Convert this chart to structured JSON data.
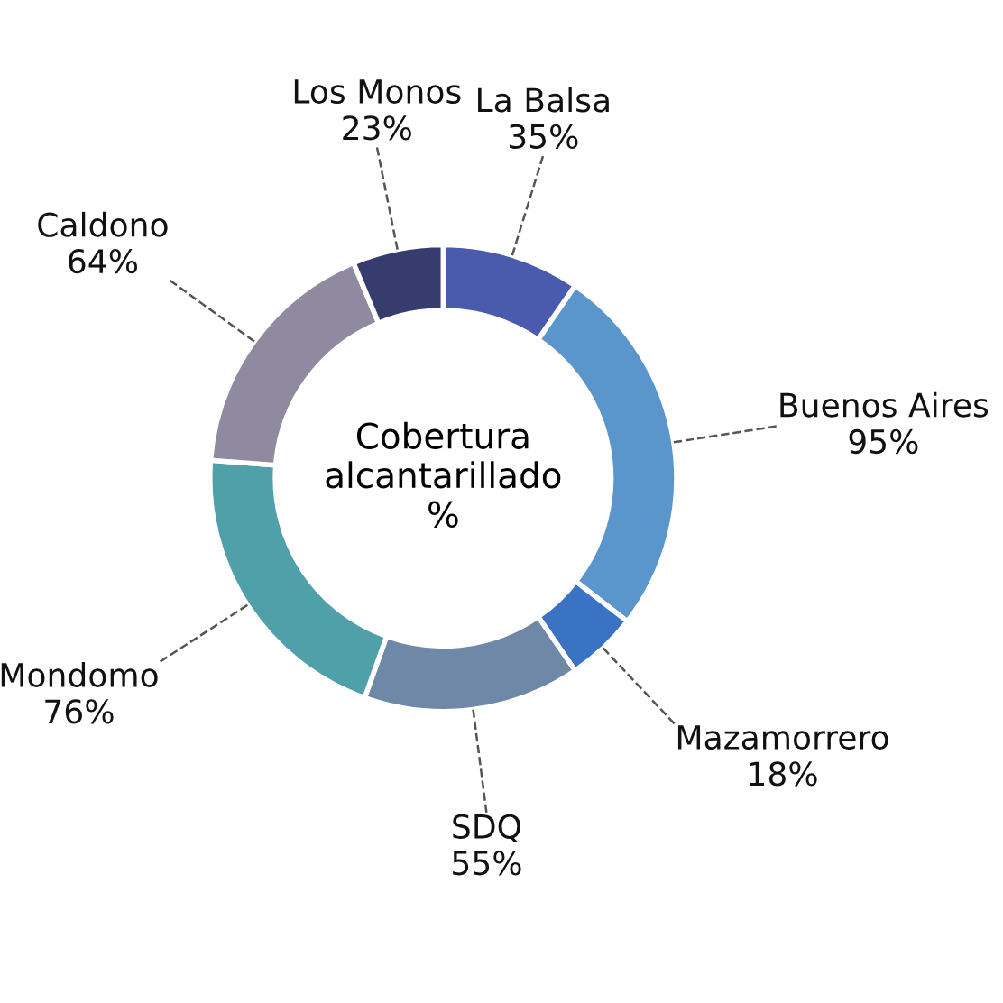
{
  "chart_data": {
    "type": "donut",
    "title": "Cobertura\nalcantarillado\n%",
    "categories": [
      "La Balsa",
      "Buenos Aires",
      "Mazamorrero",
      "SDQ",
      "Mondomo",
      "Caldono",
      "Los Monos"
    ],
    "values": [
      35,
      95,
      18,
      55,
      76,
      64,
      23
    ],
    "value_labels": [
      "35%",
      "95%",
      "18%",
      "55%",
      "76%",
      "64%",
      "23%"
    ],
    "colors": [
      "#4a5aad",
      "#5a96cc",
      "#3a72c4",
      "#7088a8",
      "#4fa0a8",
      "#908aa0",
      "#363c6e"
    ]
  }
}
